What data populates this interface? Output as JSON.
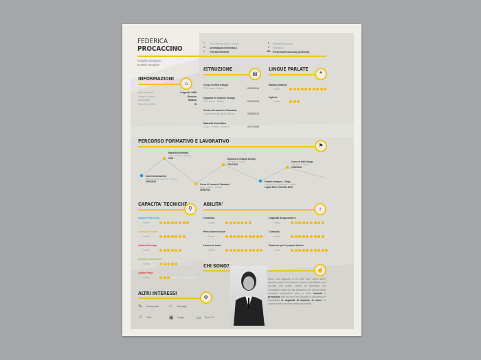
{
  "header": {
    "first_name": "FEDERICA",
    "last_name": "PROCACCINO",
    "role_1": "Graphic Designer",
    "role_2": "& Web Designer"
  },
  "contact": {
    "address": "Via Lorem Ipsum 20 - Milano",
    "email": "loremipsum@hotmail.it",
    "phone": "+39 338 0000000",
    "facebook": "/federicaprocaccino",
    "pinterest": "/fedegroco",
    "behance": "/FedericaProcaccino (portfolio)"
  },
  "info": {
    "title": "INFORMAZIONI",
    "rows": [
      {
        "label": "Data di nascita",
        "value": "8 agosto 1988"
      },
      {
        "label": "Luogo di nascita",
        "value": "Brescia"
      },
      {
        "label": "Nazionalità",
        "value": "Italiana"
      },
      {
        "label": "Patente di guida",
        "value": "B"
      }
    ]
  },
  "education": {
    "title": "ISTRUZIONE",
    "items": [
      {
        "name": "Corso di Web Design",
        "place": "CFP Bauer - Milano",
        "years": "2015/2016"
      },
      {
        "name": "Diploma in Graphic Design",
        "place": "CFP Bauer - Milano",
        "years": "2014/2015"
      },
      {
        "name": "Corso di Laurea in Farmacia",
        "place": "Università degli studi di Milano",
        "years": "2008/2013"
      },
      {
        "name": "Maturità Scientifica",
        "place": "Liceo I. Newton - Brescia",
        "years": "2007/2008"
      }
    ]
  },
  "languages": {
    "title": "LINGUE PARLATE",
    "level_label": "Livello",
    "items": [
      {
        "name": "Italiano (nativo)",
        "level": 10
      },
      {
        "name": "Inglese",
        "level": 3
      }
    ]
  },
  "timeline": {
    "title": "PERCORSO FORMATIVO E LAVORATIVO",
    "items": [
      {
        "name": "Cameriera/Cassiera",
        "place": "Ristorante Villa Guardino - Brescia",
        "years": "2006/2016",
        "kind": "work"
      },
      {
        "name": "Maturità Scientifica",
        "place": "Liceo I. Newton - Brescia",
        "years": "2008",
        "kind": "study"
      },
      {
        "name": "Corso di Laurea in Farmacia",
        "place": "Unimi - Milano - Brescia",
        "years": "2008/2013",
        "kind": "study"
      },
      {
        "name": "Diploma in Graphic Design",
        "place": "CFP Bauer - Milano",
        "years": "2014/2015",
        "kind": "study"
      },
      {
        "name": "Graphic designer - Stage",
        "place": "Agenzia di comunicazione - Milano",
        "years": "Luglio 2015 / Gennaio 2016",
        "kind": "work"
      },
      {
        "name": "Corso di Web Design",
        "place": "CFP Bauer - Milano",
        "years": "2015/2016",
        "kind": "study"
      }
    ]
  },
  "colors": {
    "accent": "#f2c21b",
    "work": "#1e9ad6",
    "study": "#f2b90f"
  },
  "tech": {
    "title": "CAPACITA' TECNICHE",
    "level_label": "Livello",
    "items": [
      {
        "name": "Adobe Photoshop",
        "level": 8,
        "color": "#2aa8e0"
      },
      {
        "name": "Adobe Illustrator",
        "level": 7,
        "color": "#f5a623"
      },
      {
        "name": "Adobe InDesign",
        "level": 6,
        "color": "#d6247a"
      },
      {
        "name": "Adobe Dreamweaver",
        "level": 5,
        "color": "#8cc63f"
      },
      {
        "name": "Adobe Flash",
        "level": 3,
        "color": "#e0282e"
      }
    ]
  },
  "skills": {
    "title": "ABILITA'",
    "level_label": "Livello",
    "items": [
      {
        "name": "Creatività",
        "level": 7
      },
      {
        "name": "Precisione tecnica",
        "level": 10
      },
      {
        "name": "Lavoro in team",
        "level": 10
      },
      {
        "name": "Capacità di apprendere",
        "level": 9
      },
      {
        "name": "Curiosità",
        "level": 9
      },
      {
        "name": "Passione per il proprio lavoro",
        "level": 10
      }
    ]
  },
  "about": {
    "title": "CHI SONO?",
    "text_1": "Sono una ragazza di 28 anni che, dopo avere passato quasi 10 a studiare materie scientifiche, si è accorta che quella strada la annoiava. Ho cominciato quindi la mia avventura nel mondo della creatività portandomi però in dote",
    "bold_1": "metodo",
    "text_2": "e",
    "bold_2": "precisione",
    "text_3": "dati da ore e ore di studio e laboratorio e soprattutto",
    "bold_3": "la capacità di lavorare in team.",
    "text_4": "In questo penso mi siano molto più d'aiuto."
  },
  "interests": {
    "title": "ALTRI INTERESSI",
    "items": [
      {
        "name": "Arrampicata",
        "icon": "climbing-icon"
      },
      {
        "name": "Bricolage",
        "icon": "toolbox-icon"
      },
      {
        "name": "Gatti",
        "icon": "cat-icon"
      },
      {
        "name": "Viaggi",
        "icon": "suitcase-icon"
      },
      {
        "name": "Serie TV",
        "icon": "tv-icon"
      }
    ]
  }
}
